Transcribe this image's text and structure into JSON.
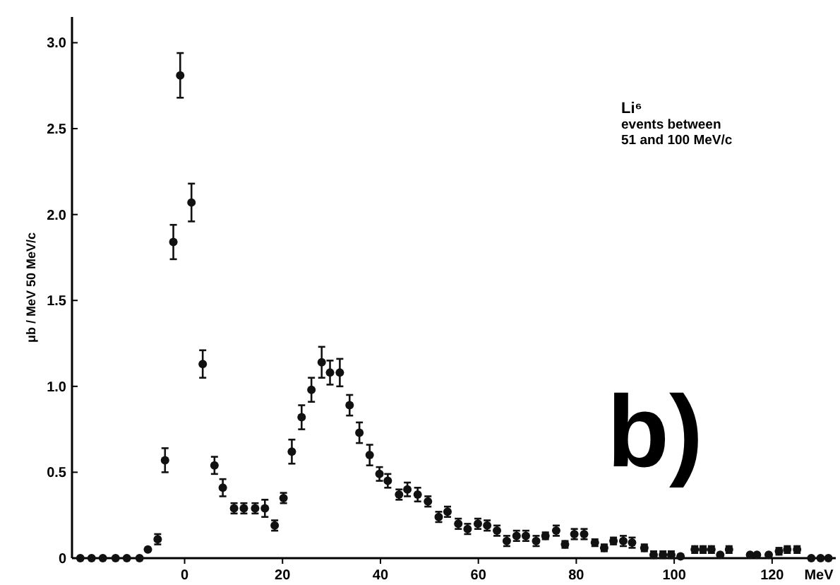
{
  "chart_data": {
    "type": "scatter",
    "xlabel": "MeV",
    "ylabel": "μb / MeV 50 MeV/c",
    "annotations": [
      "Li⁶",
      "events between",
      "51 and 100 MeV/c",
      "b)"
    ],
    "xlim": [
      -23,
      133
    ],
    "ylim": [
      0,
      3.15
    ],
    "xticks": [
      0,
      20,
      40,
      60,
      80,
      100,
      120
    ],
    "yticks": [
      0,
      {
        "value": 0.5,
        "label": "0.5"
      },
      {
        "value": 1,
        "label": "1.0"
      },
      {
        "value": 1.5,
        "label": "1.5"
      },
      {
        "value": 2,
        "label": "2.0"
      },
      {
        "value": 2.5,
        "label": "2.5"
      },
      {
        "value": 3,
        "label": "3.0"
      }
    ],
    "marker": "circle",
    "grid": false,
    "series": [
      {
        "color": "#111111",
        "x": [
          -21.3,
          -19.0,
          -16.7,
          -14.1,
          -11.8,
          -9.2,
          -7.5,
          -5.5,
          -4.0,
          -2.3,
          -0.9,
          1.4,
          3.7,
          6.1,
          7.8,
          10.1,
          12.1,
          14.4,
          16.4,
          18.4,
          20.2,
          21.9,
          23.9,
          25.9,
          28.0,
          29.7,
          31.7,
          33.7,
          35.7,
          37.8,
          39.8,
          41.5,
          43.8,
          45.5,
          47.6,
          49.7,
          51.9,
          53.7,
          55.9,
          57.8,
          59.9,
          61.8,
          63.8,
          65.8,
          67.8,
          69.7,
          71.8,
          73.7,
          75.9,
          77.7,
          79.6,
          81.6,
          83.8,
          85.7,
          87.6,
          89.6,
          91.4,
          93.9,
          95.8,
          97.7,
          99.4,
          101.3,
          104.2,
          105.9,
          107.6,
          109.4,
          111.2,
          115.5,
          116.9,
          119.3,
          121.4,
          123.1,
          125.1,
          128.0,
          129.9,
          131.5
        ],
        "values": [
          0,
          0,
          0,
          0,
          0,
          0,
          0.05,
          0.11,
          0.57,
          1.84,
          2.81,
          2.07,
          1.13,
          0.54,
          0.41,
          0.29,
          0.29,
          0.29,
          0.29,
          0.19,
          0.35,
          0.62,
          0.82,
          0.98,
          1.14,
          1.08,
          1.08,
          0.89,
          0.73,
          0.6,
          0.49,
          0.45,
          0.37,
          0.4,
          0.37,
          0.33,
          0.24,
          0.27,
          0.2,
          0.17,
          0.2,
          0.19,
          0.16,
          0.1,
          0.13,
          0.13,
          0.1,
          0.13,
          0.16,
          0.08,
          0.14,
          0.14,
          0.09,
          0.06,
          0.1,
          0.1,
          0.09,
          0.06,
          0.02,
          0.02,
          0.02,
          0.01,
          0.05,
          0.05,
          0.05,
          0.02,
          0.05,
          0.02,
          0.02,
          0.02,
          0.04,
          0.05,
          0.05,
          0,
          0,
          0
        ],
        "errors": [
          null,
          null,
          null,
          null,
          null,
          null,
          null,
          0.03,
          0.07,
          0.1,
          0.13,
          0.11,
          0.08,
          0.05,
          0.05,
          0.03,
          0.03,
          0.03,
          0.05,
          0.03,
          0.03,
          0.07,
          0.07,
          0.07,
          0.09,
          0.07,
          0.08,
          0.06,
          0.06,
          0.06,
          0.04,
          0.04,
          0.03,
          0.04,
          0.04,
          0.03,
          0.03,
          0.03,
          0.03,
          0.03,
          0.03,
          0.03,
          0.03,
          0.03,
          0.03,
          0.03,
          0.03,
          0.02,
          0.03,
          0.02,
          0.03,
          0.03,
          0.02,
          0.02,
          0.02,
          0.03,
          0.03,
          0.02,
          0.02,
          0.02,
          0.02,
          null,
          0.02,
          0.02,
          0.02,
          null,
          0.02,
          null,
          null,
          null,
          0.02,
          0.02,
          0.02,
          null,
          null,
          null
        ]
      }
    ]
  }
}
